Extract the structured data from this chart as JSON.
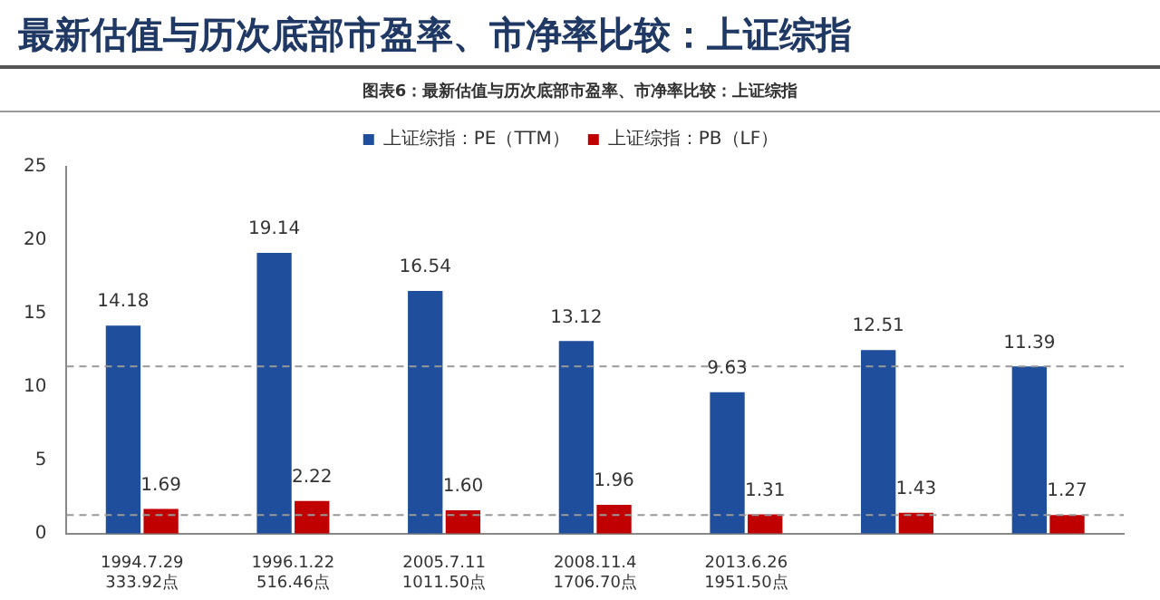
{
  "chart_data": {
    "type": "bar",
    "title": "最新估值与历次底部市盈率、市净率比较：上证综指",
    "subtitle": "图表6：最新估值与历次底部市盈率、市净率比较：上证综指",
    "categories": [
      "1994.7.29\n333.92点",
      "1996.1.22\n516.46点",
      "2005.7.11\n1011.50点",
      "2008.11.4\n1706.70点",
      "2013.6.26\n1951.50点",
      null,
      null
    ],
    "series": [
      {
        "name": "上证综指：PE（TTM）",
        "color": "#1f4e9c",
        "values": [
          14.18,
          19.14,
          16.54,
          13.12,
          9.63,
          12.51,
          11.39
        ]
      },
      {
        "name": "上证综指：PB（LF）",
        "color": "#c00000",
        "values": [
          1.69,
          2.22,
          1.6,
          1.96,
          1.31,
          1.43,
          1.27
        ],
        "value_labels": [
          "1.69",
          "2.22",
          "1.60",
          "1.96",
          "1.31",
          "1.43",
          "1.27"
        ]
      }
    ],
    "ylim": [
      0,
      25
    ],
    "yticks": [
      0,
      5,
      10,
      15,
      20,
      25
    ],
    "grid": false,
    "legend": "top",
    "data_labels": true,
    "ref_lines": [
      {
        "axis": "y",
        "value": 11.39,
        "color": "#999999",
        "line_style": "dashed"
      },
      {
        "axis": "y",
        "value": 1.27,
        "color": "#999999",
        "line_style": "dashed"
      }
    ]
  }
}
